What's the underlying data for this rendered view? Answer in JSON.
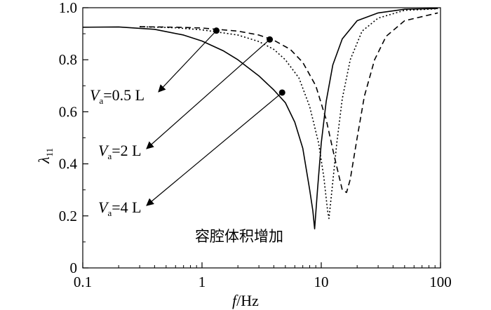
{
  "chart_data": {
    "type": "line",
    "xlabel": {
      "italic": "f",
      "rest": "/Hz"
    },
    "ylabel": {
      "main": "λ",
      "sub": "11"
    },
    "xscale": "log",
    "xlim": [
      0.1,
      100
    ],
    "ylim": [
      0,
      1.0
    ],
    "xticks": [
      {
        "value": 0.1,
        "label": "0.1"
      },
      {
        "value": 1,
        "label": "1"
      },
      {
        "value": 10,
        "label": "10"
      },
      {
        "value": 100,
        "label": "100"
      }
    ],
    "yticks": [
      {
        "value": 0,
        "label": "0"
      },
      {
        "value": 0.2,
        "label": "0.2"
      },
      {
        "value": 0.4,
        "label": "0.4"
      },
      {
        "value": 0.6,
        "label": "0.6"
      },
      {
        "value": 0.8,
        "label": "0.8"
      },
      {
        "value": 1.0,
        "label": "1.0"
      }
    ],
    "series": [
      {
        "style": "solid",
        "points": [
          [
            0.1,
            0.925
          ],
          [
            0.2,
            0.926
          ],
          [
            0.4,
            0.917
          ],
          [
            0.7,
            0.895
          ],
          [
            1.0,
            0.872
          ],
          [
            1.5,
            0.835
          ],
          [
            2.0,
            0.8
          ],
          [
            3.0,
            0.738
          ],
          [
            4.0,
            0.684
          ],
          [
            5.0,
            0.635
          ],
          [
            6.0,
            0.56
          ],
          [
            7.0,
            0.46
          ],
          [
            8.0,
            0.3
          ],
          [
            8.5,
            0.22
          ],
          [
            8.8,
            0.15
          ],
          [
            9.3,
            0.3
          ],
          [
            10.0,
            0.48
          ],
          [
            11.0,
            0.64
          ],
          [
            12.5,
            0.78
          ],
          [
            15.0,
            0.88
          ],
          [
            20.0,
            0.95
          ],
          [
            30.0,
            0.98
          ],
          [
            50.0,
            0.994
          ],
          [
            95.0,
            0.997
          ]
        ]
      },
      {
        "style": "dotted",
        "points": [
          [
            0.3,
            0.927
          ],
          [
            0.6,
            0.923
          ],
          [
            1.0,
            0.915
          ],
          [
            2.0,
            0.895
          ],
          [
            3.0,
            0.87
          ],
          [
            4.0,
            0.84
          ],
          [
            5.0,
            0.8
          ],
          [
            6.5,
            0.73
          ],
          [
            8.0,
            0.62
          ],
          [
            9.5,
            0.48
          ],
          [
            10.5,
            0.35
          ],
          [
            11.3,
            0.22
          ],
          [
            11.6,
            0.19
          ],
          [
            12.3,
            0.3
          ],
          [
            13.5,
            0.48
          ],
          [
            15.0,
            0.65
          ],
          [
            17.5,
            0.8
          ],
          [
            22.0,
            0.91
          ],
          [
            30.0,
            0.96
          ],
          [
            50.0,
            0.99
          ],
          [
            95.0,
            0.996
          ]
        ]
      },
      {
        "style": "dashed",
        "points": [
          [
            0.3,
            0.927
          ],
          [
            0.6,
            0.925
          ],
          [
            1.0,
            0.922
          ],
          [
            2.0,
            0.91
          ],
          [
            3.0,
            0.895
          ],
          [
            4.0,
            0.875
          ],
          [
            5.5,
            0.84
          ],
          [
            7.0,
            0.79
          ],
          [
            9.0,
            0.7
          ],
          [
            11.0,
            0.57
          ],
          [
            13.0,
            0.42
          ],
          [
            15.0,
            0.3
          ],
          [
            16.3,
            0.29
          ],
          [
            17.5,
            0.34
          ],
          [
            20.0,
            0.5
          ],
          [
            23.0,
            0.66
          ],
          [
            28.0,
            0.8
          ],
          [
            35.0,
            0.89
          ],
          [
            50.0,
            0.95
          ],
          [
            95.0,
            0.98
          ]
        ]
      }
    ],
    "markers": [
      {
        "x": 1.32,
        "y": 0.912
      },
      {
        "x": 3.7,
        "y": 0.878
      },
      {
        "x": 4.7,
        "y": 0.674
      }
    ],
    "annotations": [
      {
        "label_main": "V",
        "label_sub": "a",
        "label_rest": "=0.5 L",
        "target_marker": 0
      },
      {
        "label_main": "V",
        "label_sub": "a",
        "label_rest": "=2 L",
        "target_marker": 1
      },
      {
        "label_main": "V",
        "label_sub": "a",
        "label_rest": "=4 L",
        "target_marker": 2
      }
    ],
    "note": "容腔体积增加"
  }
}
